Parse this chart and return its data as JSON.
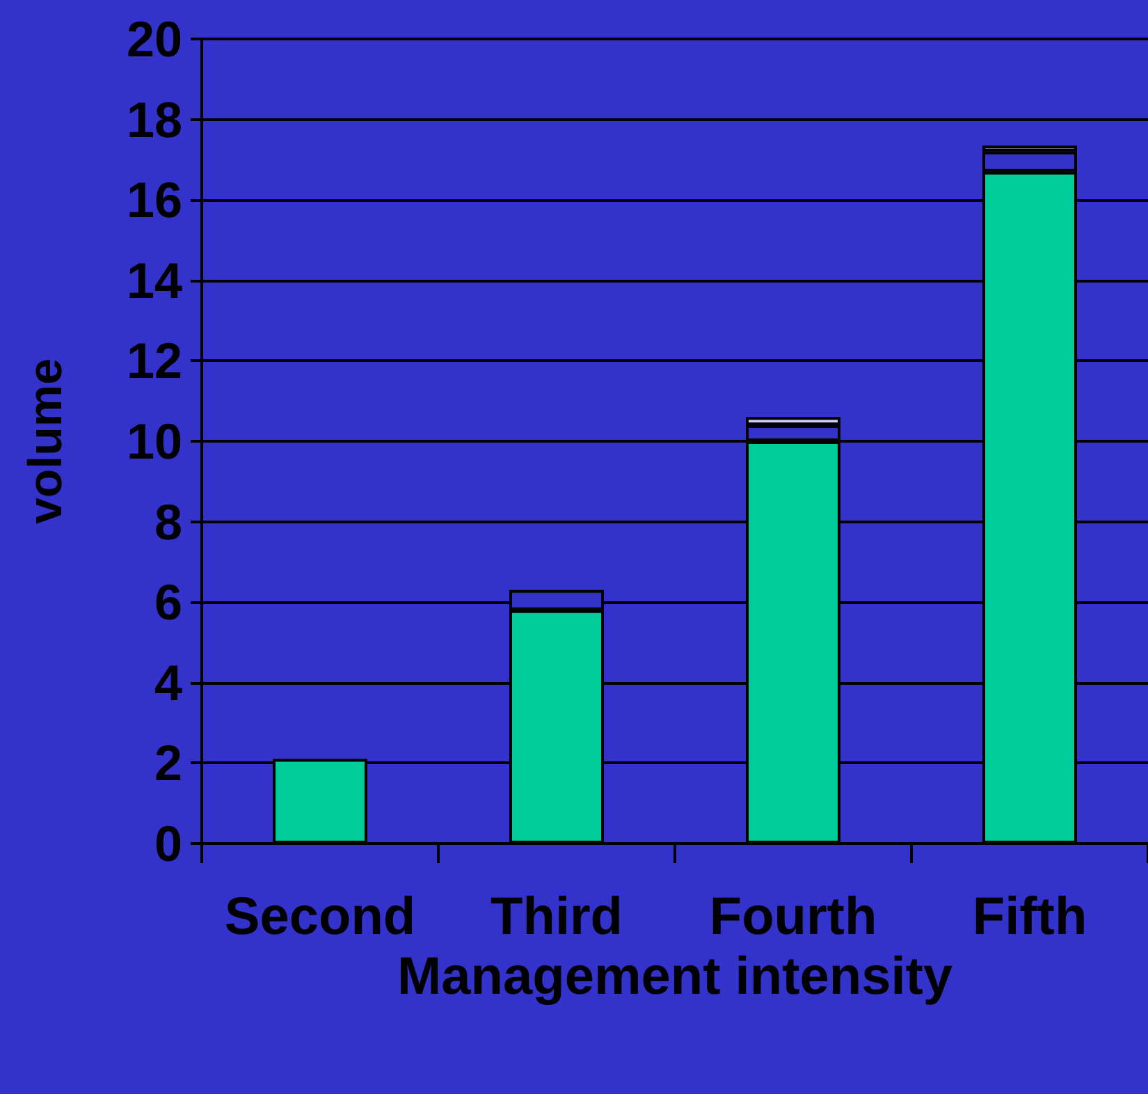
{
  "chart_data": {
    "type": "bar",
    "stacked": true,
    "xlabel": "Management intensity",
    "ylabel": "volume",
    "categories": [
      "Second",
      "Third",
      "Fourth",
      "Fifth"
    ],
    "series": [
      {
        "color": "#00cc99",
        "values": [
          2.1,
          5.8,
          10.0,
          16.7
        ]
      },
      {
        "color": "#3333cc",
        "values": [
          null,
          0.5,
          0.4,
          0.5
        ]
      },
      {
        "color": "#ccccff",
        "values": [
          null,
          null,
          0.2,
          0.15
        ]
      }
    ],
    "ylim": [
      0,
      20
    ],
    "yticks": [
      0,
      2,
      4,
      6,
      8,
      10,
      12,
      14,
      16,
      18,
      20
    ],
    "grid": "y"
  }
}
